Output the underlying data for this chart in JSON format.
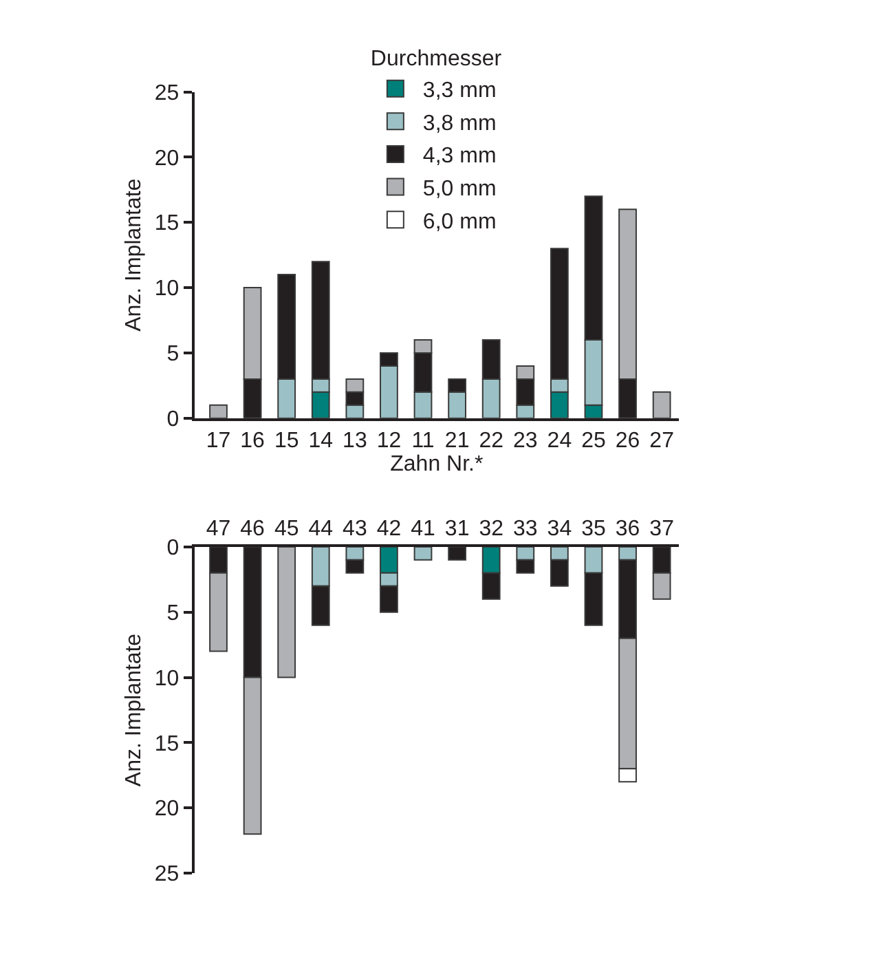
{
  "chart_data": [
    {
      "type": "bar",
      "stacked": true,
      "categories": [
        "17",
        "16",
        "15",
        "14",
        "13",
        "12",
        "11",
        "21",
        "22",
        "23",
        "24",
        "25",
        "26",
        "27"
      ],
      "xlabel": "Zahn Nr.*",
      "ylabel": "Anz. Implantate",
      "legend_title": "Durchmesser",
      "legend": "top",
      "ylim": [
        0,
        25
      ],
      "yticks": [
        0,
        5,
        10,
        15,
        20,
        25
      ],
      "series": [
        {
          "name": "3,3 mm",
          "color": "#00807a",
          "values": [
            null,
            null,
            null,
            2,
            null,
            null,
            null,
            null,
            null,
            null,
            2,
            1,
            null,
            null
          ]
        },
        {
          "name": "3,8 mm",
          "color": "#9bc1c6",
          "values": [
            null,
            null,
            3,
            1,
            1,
            4,
            2,
            2,
            3,
            1,
            1,
            5,
            null,
            null
          ]
        },
        {
          "name": "4,3 mm",
          "color": "#231f20",
          "values": [
            null,
            3,
            8,
            9,
            1,
            1,
            3,
            1,
            3,
            2,
            10,
            11,
            3,
            null
          ]
        },
        {
          "name": "5,0 mm",
          "color": "#b0b1b4",
          "values": [
            1,
            7,
            null,
            null,
            1,
            null,
            1,
            null,
            null,
            1,
            null,
            null,
            13,
            2
          ]
        },
        {
          "name": "6,0 mm",
          "color": "#ffffff",
          "values": [
            null,
            null,
            null,
            null,
            null,
            null,
            null,
            null,
            null,
            null,
            null,
            null,
            null,
            null
          ]
        }
      ]
    },
    {
      "type": "bar",
      "stacked": true,
      "categories": [
        "47",
        "46",
        "45",
        "44",
        "43",
        "42",
        "41",
        "31",
        "32",
        "33",
        "34",
        "35",
        "36",
        "37"
      ],
      "ylabel": "Anz. Implantate",
      "legend": false,
      "ylim": [
        25,
        0
      ],
      "yticks": [
        0,
        5,
        10,
        15,
        20,
        25
      ],
      "series": [
        {
          "color": "#00807a",
          "values": [
            null,
            null,
            null,
            null,
            null,
            2,
            null,
            null,
            2,
            null,
            null,
            null,
            null,
            null
          ]
        },
        {
          "color": "#9bc1c6",
          "values": [
            null,
            null,
            null,
            3,
            1,
            1,
            1,
            null,
            null,
            1,
            1,
            2,
            1,
            null
          ]
        },
        {
          "color": "#231f20",
          "values": [
            2,
            10,
            null,
            3,
            1,
            2,
            null,
            1,
            2,
            1,
            2,
            4,
            6,
            2
          ]
        },
        {
          "color": "#b0b1b4",
          "values": [
            6,
            12,
            10,
            null,
            null,
            null,
            null,
            null,
            null,
            null,
            null,
            null,
            10,
            2
          ]
        },
        {
          "color": "#ffffff",
          "values": [
            null,
            null,
            null,
            null,
            null,
            null,
            null,
            null,
            null,
            null,
            null,
            null,
            1,
            null
          ]
        }
      ]
    }
  ]
}
